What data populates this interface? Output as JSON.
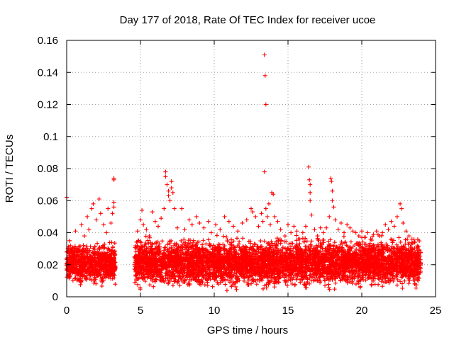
{
  "chart_data": {
    "type": "scatter",
    "title": "Day 177 of 2018, Rate Of TEC Index for receiver ucoe",
    "xlabel": "GPS time / hours",
    "ylabel": "ROTI / TECUs",
    "xlim": [
      0,
      25
    ],
    "ylim": [
      0,
      0.16
    ],
    "xticks": [
      0,
      5,
      10,
      15,
      20,
      25
    ],
    "xtick_labels": [
      "0",
      "5",
      "10",
      "15",
      "20",
      "25"
    ],
    "yticks": [
      0,
      0.02,
      0.04,
      0.06,
      0.08,
      0.1,
      0.12,
      0.14,
      0.16
    ],
    "ytick_labels": [
      "0",
      "0.02",
      "0.04",
      "0.06",
      "0.08",
      "0.1",
      "0.12",
      "0.14",
      "0.16"
    ],
    "grid": true,
    "marker": "+",
    "color": "#ff0000",
    "series": [
      {
        "name": "ROTI",
        "points": [
          [
            0.0,
            0.062
          ],
          [
            0.1,
            0.028
          ],
          [
            0.2,
            0.035
          ],
          [
            0.3,
            0.022
          ],
          [
            0.5,
            0.03
          ],
          [
            0.6,
            0.041
          ],
          [
            0.8,
            0.025
          ],
          [
            1.0,
            0.045
          ],
          [
            1.2,
            0.038
          ],
          [
            1.4,
            0.05
          ],
          [
            1.5,
            0.042
          ],
          [
            1.7,
            0.055
          ],
          [
            1.8,
            0.058
          ],
          [
            2.0,
            0.048
          ],
          [
            2.2,
            0.061
          ],
          [
            2.3,
            0.052
          ],
          [
            2.5,
            0.045
          ],
          [
            2.7,
            0.04
          ],
          [
            2.8,
            0.055
          ],
          [
            3.0,
            0.046
          ],
          [
            3.1,
            0.052
          ],
          [
            3.2,
            0.074
          ],
          [
            3.2,
            0.073
          ],
          [
            3.2,
            0.059
          ],
          [
            3.2,
            0.056
          ],
          [
            4.7,
            0.03
          ],
          [
            4.8,
            0.041
          ],
          [
            5.0,
            0.048
          ],
          [
            5.1,
            0.054
          ],
          [
            5.2,
            0.045
          ],
          [
            5.4,
            0.042
          ],
          [
            5.6,
            0.038
          ],
          [
            5.8,
            0.053
          ],
          [
            6.0,
            0.047
          ],
          [
            6.2,
            0.044
          ],
          [
            6.4,
            0.049
          ],
          [
            6.6,
            0.055
          ],
          [
            6.7,
            0.078
          ],
          [
            6.7,
            0.075
          ],
          [
            6.8,
            0.07
          ],
          [
            6.9,
            0.066
          ],
          [
            6.9,
            0.063
          ],
          [
            7.0,
            0.06
          ],
          [
            7.1,
            0.072
          ],
          [
            7.1,
            0.068
          ],
          [
            7.2,
            0.065
          ],
          [
            7.3,
            0.055
          ],
          [
            7.5,
            0.043
          ],
          [
            7.8,
            0.055
          ],
          [
            8.0,
            0.042
          ],
          [
            8.3,
            0.048
          ],
          [
            8.5,
            0.045
          ],
          [
            8.8,
            0.05
          ],
          [
            9.0,
            0.046
          ],
          [
            9.3,
            0.043
          ],
          [
            9.6,
            0.047
          ],
          [
            9.8,
            0.04
          ],
          [
            10.1,
            0.045
          ],
          [
            10.4,
            0.042
          ],
          [
            10.7,
            0.05
          ],
          [
            11.0,
            0.047
          ],
          [
            11.3,
            0.044
          ],
          [
            11.6,
            0.041
          ],
          [
            11.9,
            0.046
          ],
          [
            12.2,
            0.048
          ],
          [
            12.5,
            0.055
          ],
          [
            12.6,
            0.053
          ],
          [
            12.8,
            0.05
          ],
          [
            13.0,
            0.044
          ],
          [
            13.2,
            0.052
          ],
          [
            13.3,
            0.047
          ],
          [
            13.4,
            0.151
          ],
          [
            13.45,
            0.138
          ],
          [
            13.5,
            0.12
          ],
          [
            13.4,
            0.078
          ],
          [
            13.5,
            0.055
          ],
          [
            13.6,
            0.05
          ],
          [
            13.7,
            0.058
          ],
          [
            13.8,
            0.045
          ],
          [
            13.9,
            0.065
          ],
          [
            14.0,
            0.064
          ],
          [
            14.1,
            0.05
          ],
          [
            14.3,
            0.047
          ],
          [
            14.5,
            0.042
          ],
          [
            14.8,
            0.038
          ],
          [
            15.0,
            0.045
          ],
          [
            15.2,
            0.04
          ],
          [
            15.4,
            0.044
          ],
          [
            15.6,
            0.041
          ],
          [
            15.8,
            0.036
          ],
          [
            16.0,
            0.04
          ],
          [
            16.2,
            0.044
          ],
          [
            16.4,
            0.081
          ],
          [
            16.45,
            0.073
          ],
          [
            16.5,
            0.07
          ],
          [
            16.5,
            0.065
          ],
          [
            16.5,
            0.06
          ],
          [
            16.6,
            0.051
          ],
          [
            16.8,
            0.042
          ],
          [
            17.0,
            0.038
          ],
          [
            17.2,
            0.043
          ],
          [
            17.4,
            0.04
          ],
          [
            17.6,
            0.043
          ],
          [
            17.8,
            0.05
          ],
          [
            17.9,
            0.074
          ],
          [
            17.95,
            0.072
          ],
          [
            18.0,
            0.066
          ],
          [
            18.0,
            0.06
          ],
          [
            18.1,
            0.056
          ],
          [
            18.2,
            0.048
          ],
          [
            18.4,
            0.042
          ],
          [
            18.6,
            0.046
          ],
          [
            18.8,
            0.04
          ],
          [
            19.0,
            0.045
          ],
          [
            19.2,
            0.043
          ],
          [
            19.4,
            0.041
          ],
          [
            19.6,
            0.04
          ],
          [
            19.8,
            0.038
          ],
          [
            20.0,
            0.041
          ],
          [
            20.2,
            0.037
          ],
          [
            20.4,
            0.04
          ],
          [
            20.6,
            0.036
          ],
          [
            20.8,
            0.039
          ],
          [
            21.0,
            0.041
          ],
          [
            21.2,
            0.038
          ],
          [
            21.4,
            0.04
          ],
          [
            21.6,
            0.045
          ],
          [
            21.8,
            0.042
          ],
          [
            22.0,
            0.047
          ],
          [
            22.2,
            0.044
          ],
          [
            22.4,
            0.05
          ],
          [
            22.6,
            0.058
          ],
          [
            22.7,
            0.055
          ],
          [
            22.8,
            0.046
          ],
          [
            23.0,
            0.041
          ],
          [
            23.2,
            0.038
          ],
          [
            23.4,
            0.036
          ],
          [
            23.6,
            0.034
          ],
          [
            23.8,
            0.031
          ],
          [
            23.9,
            0.029
          ]
        ]
      }
    ],
    "dense_band": {
      "description": "Dense cloud of ROTI samples with data gap between 3.3 and 4.6 hours",
      "segments": [
        {
          "x_start": 0.0,
          "x_end": 3.3,
          "y_low": 0.005,
          "y_high": 0.035
        },
        {
          "x_start": 4.6,
          "x_end": 24.0,
          "y_low": 0.003,
          "y_high": 0.038
        }
      ]
    }
  }
}
